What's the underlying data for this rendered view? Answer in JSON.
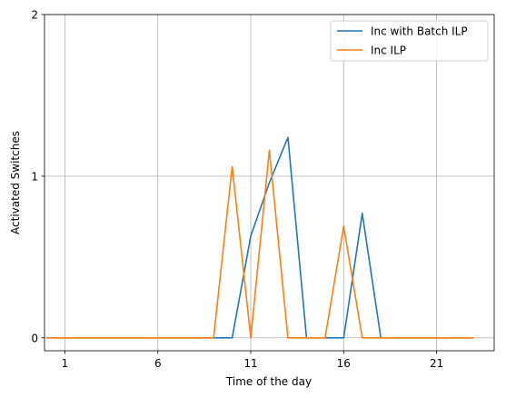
{
  "chart_data": {
    "type": "line",
    "xlabel": "Time of the day",
    "ylabel": "Activated Switches",
    "xlim": [
      -0.1,
      24.1
    ],
    "ylim": [
      -0.08,
      2
    ],
    "xticks": [
      1,
      6,
      11,
      16,
      21
    ],
    "yticks": [
      0,
      1,
      2
    ],
    "grid": true,
    "legend_position": "top-right",
    "series": [
      {
        "name": "Inc with Batch ILP",
        "color": "#1f77b4",
        "x": [
          0,
          1,
          2,
          3,
          4,
          5,
          6,
          7,
          8,
          9,
          10,
          11,
          12,
          13,
          14,
          15,
          16,
          17,
          18,
          19,
          20,
          21,
          22,
          23
        ],
        "y": [
          0,
          0,
          0,
          0,
          0,
          0,
          0,
          0,
          0,
          0,
          0,
          0.63,
          0.96,
          1.24,
          0,
          0,
          0,
          0.77,
          0,
          0,
          0,
          0,
          0,
          0
        ]
      },
      {
        "name": "Inc ILP",
        "color": "#ff7f0e",
        "x": [
          0,
          1,
          2,
          3,
          4,
          5,
          6,
          7,
          8,
          9,
          10,
          11,
          12,
          13,
          14,
          15,
          16,
          17,
          18,
          19,
          20,
          21,
          22,
          23
        ],
        "y": [
          0,
          0,
          0,
          0,
          0,
          0,
          0,
          0,
          0,
          0,
          1.06,
          0,
          1.16,
          0,
          0,
          0,
          0.69,
          0,
          0,
          0,
          0,
          0,
          0,
          0
        ]
      }
    ]
  }
}
